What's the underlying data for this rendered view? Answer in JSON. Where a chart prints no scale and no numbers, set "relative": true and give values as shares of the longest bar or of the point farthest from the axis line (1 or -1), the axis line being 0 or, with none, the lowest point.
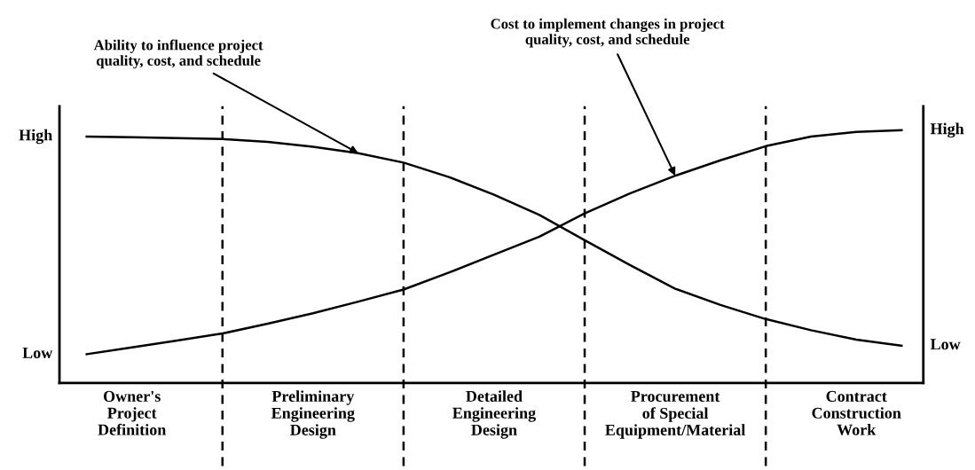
{
  "chart_data": {
    "type": "line",
    "relative": true,
    "categories": [
      null,
      "Owner's\nProject\nDefinition",
      null,
      null,
      null,
      "Preliminary\nEngineering\nDesign",
      null,
      null,
      null,
      "Detailed\nEngineering\nDesign",
      null,
      null,
      null,
      "Procurement\nof Special\nEquipment/Material",
      null,
      null,
      null,
      "Contract\nConstruction\nWork",
      null
    ],
    "series": [
      {
        "color": "#000000",
        "values": [
          0.975,
          0.972,
          0.969,
          0.965,
          0.954,
          0.935,
          0.909,
          0.872,
          0.815,
          0.745,
          0.665,
          0.565,
          0.467,
          0.373,
          0.309,
          0.253,
          0.209,
          0.172,
          0.148
        ]
      },
      {
        "color": "#000000",
        "values": [
          0.114,
          0.141,
          0.168,
          0.196,
          0.235,
          0.276,
          0.322,
          0.37,
          0.437,
          0.508,
          0.579,
          0.671,
          0.75,
          0.82,
          0.881,
          0.937,
          0.975,
          0.993,
          1.0
        ]
      }
    ],
    "grid": "x",
    "annotations": [
      "Ability to influence project\nquality, cost, and schedule",
      "Cost to implement changes in project\nquality, cost, and schedule",
      "High",
      "Low",
      "High",
      "Low"
    ],
    "marker": "none",
    "line_style": "solid"
  }
}
